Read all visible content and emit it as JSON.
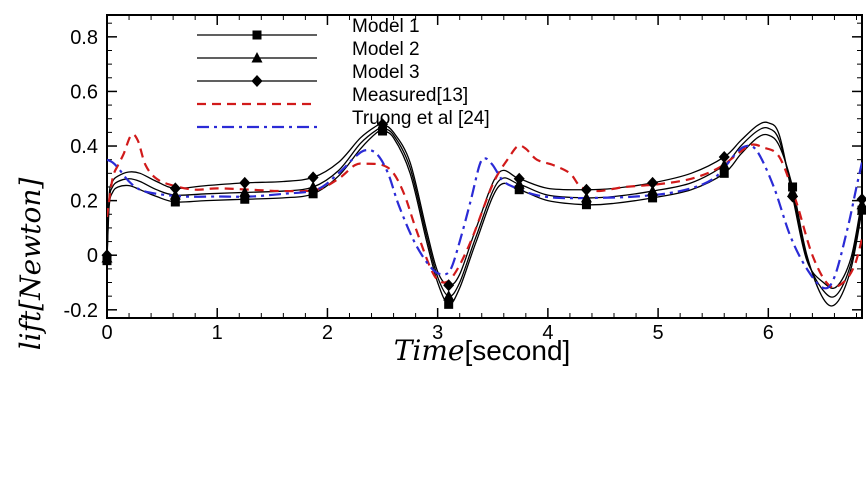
{
  "chart_data": {
    "type": "line",
    "title": "",
    "xlabel": "Time[second]",
    "xlabel_parts": {
      "var": "Time",
      "unit": "[second]"
    },
    "ylabel": "lift[Newton]",
    "xlim": [
      0,
      6.85
    ],
    "ylim": [
      -0.23,
      0.88
    ],
    "xticks": [
      0,
      1,
      2,
      3,
      4,
      5,
      6
    ],
    "xtick_labels": [
      "0",
      "1",
      "2",
      "3",
      "4",
      "5",
      "6"
    ],
    "yticks": [
      -0.2,
      0,
      0.2,
      0.4,
      0.6,
      0.8
    ],
    "ytick_labels": [
      "-0.2",
      "0",
      "0.2",
      "0.4",
      "0.6",
      "0.8"
    ],
    "grid": false,
    "legend_position": "top-left",
    "series": [
      {
        "name": "Model 1",
        "color": "#000000",
        "dash": "solid",
        "marker": "square",
        "x": [
          0.0,
          0.02,
          0.05,
          0.1,
          0.2,
          0.3,
          0.45,
          0.62,
          0.9,
          1.25,
          1.6,
          1.87,
          2.1,
          2.3,
          2.45,
          2.5,
          2.6,
          2.75,
          2.9,
          3.0,
          3.1,
          3.2,
          3.35,
          3.55,
          3.74,
          4.0,
          4.35,
          4.6,
          4.95,
          5.3,
          5.6,
          5.75,
          5.9,
          6.0,
          6.1,
          6.22,
          6.35,
          6.5,
          6.62,
          6.75,
          6.85
        ],
        "y": [
          -0.02,
          0.18,
          0.23,
          0.25,
          0.255,
          0.24,
          0.215,
          0.195,
          0.2,
          0.205,
          0.21,
          0.225,
          0.29,
          0.39,
          0.45,
          0.455,
          0.43,
          0.3,
          0.05,
          -0.1,
          -0.18,
          -0.12,
          0.05,
          0.25,
          0.24,
          0.2,
          0.185,
          0.19,
          0.21,
          0.24,
          0.3,
          0.37,
          0.43,
          0.44,
          0.4,
          0.25,
          0.0,
          -0.16,
          -0.175,
          -0.05,
          0.165
        ]
      },
      {
        "name": "Model 2",
        "color": "#000000",
        "dash": "solid",
        "marker": "triangle",
        "x": [
          0.0,
          0.02,
          0.05,
          0.1,
          0.2,
          0.3,
          0.45,
          0.62,
          0.9,
          1.25,
          1.6,
          1.87,
          2.1,
          2.3,
          2.45,
          2.5,
          2.6,
          2.75,
          2.9,
          3.0,
          3.1,
          3.2,
          3.35,
          3.55,
          3.74,
          4.0,
          4.35,
          4.6,
          4.95,
          5.3,
          5.6,
          5.75,
          5.9,
          6.0,
          6.1,
          6.22,
          6.35,
          6.5,
          6.62,
          6.75,
          6.85
        ],
        "y": [
          -0.01,
          0.2,
          0.25,
          0.27,
          0.28,
          0.27,
          0.24,
          0.22,
          0.225,
          0.23,
          0.235,
          0.25,
          0.31,
          0.41,
          0.46,
          0.465,
          0.44,
          0.32,
          0.07,
          -0.08,
          -0.15,
          -0.1,
          0.07,
          0.27,
          0.26,
          0.22,
          0.21,
          0.215,
          0.235,
          0.265,
          0.33,
          0.4,
          0.455,
          0.465,
          0.42,
          0.23,
          -0.01,
          -0.13,
          -0.145,
          -0.03,
          0.185
        ]
      },
      {
        "name": "Model 3",
        "color": "#000000",
        "dash": "solid",
        "marker": "diamond",
        "x": [
          0.0,
          0.02,
          0.05,
          0.1,
          0.2,
          0.3,
          0.45,
          0.62,
          0.9,
          1.25,
          1.6,
          1.87,
          2.1,
          2.3,
          2.45,
          2.5,
          2.6,
          2.75,
          2.9,
          3.0,
          3.1,
          3.2,
          3.35,
          3.55,
          3.74,
          4.0,
          4.35,
          4.6,
          4.95,
          5.3,
          5.6,
          5.75,
          5.9,
          6.0,
          6.1,
          6.22,
          6.35,
          6.5,
          6.62,
          6.75,
          6.85
        ],
        "y": [
          0.0,
          0.22,
          0.27,
          0.29,
          0.305,
          0.3,
          0.27,
          0.245,
          0.255,
          0.265,
          0.27,
          0.285,
          0.34,
          0.43,
          0.475,
          0.48,
          0.45,
          0.34,
          0.09,
          -0.06,
          -0.11,
          -0.07,
          0.1,
          0.3,
          0.28,
          0.245,
          0.24,
          0.245,
          0.265,
          0.3,
          0.36,
          0.42,
          0.475,
          0.485,
          0.44,
          0.215,
          -0.02,
          -0.1,
          -0.115,
          -0.01,
          0.205
        ]
      },
      {
        "name": "Measured[13]",
        "color": "#d11a1a",
        "dash": "dashed",
        "marker": "none",
        "x": [
          0.0,
          0.05,
          0.1,
          0.15,
          0.22,
          0.28,
          0.35,
          0.45,
          0.6,
          0.8,
          1.0,
          1.3,
          1.6,
          1.9,
          2.1,
          2.25,
          2.35,
          2.5,
          2.6,
          2.7,
          2.8,
          2.95,
          3.05,
          3.15,
          3.3,
          3.5,
          3.65,
          3.73,
          3.8,
          3.9,
          4.05,
          4.2,
          4.3,
          4.45,
          4.7,
          5.0,
          5.3,
          5.55,
          5.75,
          5.85,
          5.95,
          6.1,
          6.25,
          6.4,
          6.55,
          6.68,
          6.78,
          6.85
        ],
        "y": [
          0.14,
          0.28,
          0.33,
          0.37,
          0.44,
          0.42,
          0.33,
          0.28,
          0.255,
          0.24,
          0.245,
          0.24,
          0.235,
          0.24,
          0.28,
          0.33,
          0.335,
          0.33,
          0.3,
          0.22,
          0.1,
          -0.06,
          -0.1,
          -0.07,
          0.05,
          0.26,
          0.36,
          0.4,
          0.39,
          0.35,
          0.33,
          0.3,
          0.25,
          0.235,
          0.25,
          0.26,
          0.28,
          0.32,
          0.38,
          0.405,
          0.395,
          0.36,
          0.2,
          0.0,
          -0.11,
          -0.1,
          -0.04,
          0.06
        ]
      },
      {
        "name": "Truong et al [24]",
        "color": "#2b2bd6",
        "dash": "dashdot",
        "marker": "none",
        "x": [
          0.0,
          0.05,
          0.1,
          0.2,
          0.3,
          0.45,
          0.7,
          1.0,
          1.3,
          1.6,
          1.9,
          2.1,
          2.25,
          2.35,
          2.45,
          2.55,
          2.65,
          2.8,
          2.95,
          3.05,
          3.12,
          3.2,
          3.3,
          3.38,
          3.43,
          3.5,
          3.6,
          3.75,
          3.9,
          4.1,
          4.4,
          4.8,
          5.2,
          5.5,
          5.7,
          5.8,
          5.9,
          6.05,
          6.2,
          6.35,
          6.5,
          6.6,
          6.72,
          6.8,
          6.85
        ],
        "y": [
          0.35,
          0.34,
          0.32,
          0.27,
          0.24,
          0.225,
          0.215,
          0.215,
          0.215,
          0.225,
          0.24,
          0.3,
          0.36,
          0.385,
          0.37,
          0.3,
          0.18,
          0.04,
          -0.05,
          -0.07,
          -0.05,
          0.05,
          0.2,
          0.33,
          0.355,
          0.33,
          0.27,
          0.24,
          0.22,
          0.21,
          0.21,
          0.215,
          0.235,
          0.28,
          0.37,
          0.4,
          0.38,
          0.25,
          0.07,
          -0.05,
          -0.12,
          -0.08,
          0.1,
          0.25,
          0.34
        ]
      }
    ]
  }
}
